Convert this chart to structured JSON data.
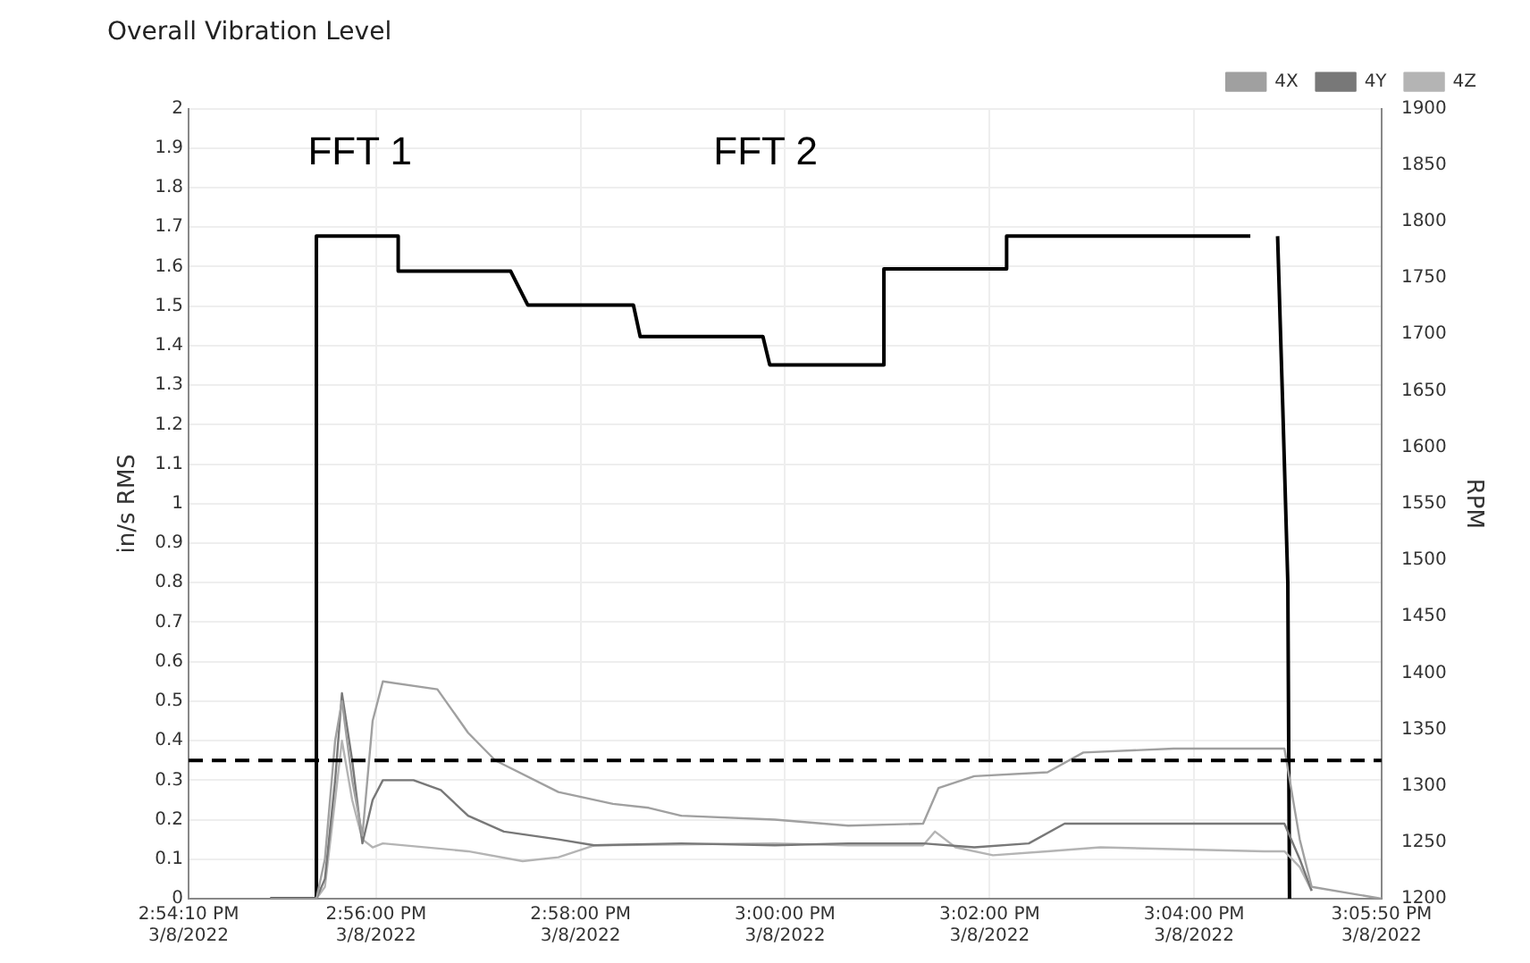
{
  "chart_data": {
    "type": "line",
    "title": "Overall Vibration Level",
    "ylabel": "in/s RMS",
    "y2label": "RPM",
    "xlim": [
      "2022-03-08T14:54:10",
      "2022-03-08T15:05:50"
    ],
    "xticks": [
      {
        "value": "2022-03-08T14:54:10",
        "label": "2:54:10 PM\n3/8/2022"
      },
      {
        "value": "2022-03-08T14:56:00",
        "label": "2:56:00 PM\n3/8/2022"
      },
      {
        "value": "2022-03-08T14:58:00",
        "label": "2:58:00 PM\n3/8/2022"
      },
      {
        "value": "2022-03-08T15:00:00",
        "label": "3:00:00 PM\n3/8/2022"
      },
      {
        "value": "2022-03-08T15:02:00",
        "label": "3:02:00 PM\n3/8/2022"
      },
      {
        "value": "2022-03-08T15:04:00",
        "label": "3:04:00 PM\n3/8/2022"
      },
      {
        "value": "2022-03-08T15:05:50",
        "label": "3:05:50 PM\n3/8/2022"
      }
    ],
    "ylim": [
      0,
      2
    ],
    "yticks": [
      0,
      0.1,
      0.2,
      0.3,
      0.4,
      0.5,
      0.6,
      0.7,
      0.8,
      0.9,
      1,
      1.1,
      1.2,
      1.3,
      1.4,
      1.5,
      1.6,
      1.7,
      1.8,
      1.9,
      2
    ],
    "y2lim": [
      1200,
      1900
    ],
    "y2ticks": [
      1200,
      1250,
      1300,
      1350,
      1400,
      1450,
      1500,
      1550,
      1600,
      1650,
      1700,
      1750,
      1800,
      1850,
      1900
    ],
    "grid": true,
    "legend": "top right",
    "marker": "none",
    "series": [
      {
        "name": "4X",
        "color": "#a0a0a0",
        "x": [
          "2022-03-08T14:54:58",
          "2022-03-08T14:55:25",
          "2022-03-08T14:55:30",
          "2022-03-08T14:55:36",
          "2022-03-08T14:55:40",
          "2022-03-08T14:55:46",
          "2022-03-08T14:55:52",
          "2022-03-08T14:55:58",
          "2022-03-08T14:56:04",
          "2022-03-08T14:56:36",
          "2022-03-08T14:56:54",
          "2022-03-08T14:57:10",
          "2022-03-08T14:57:47",
          "2022-03-08T14:58:19",
          "2022-03-08T14:58:40",
          "2022-03-08T14:58:59",
          "2022-03-08T14:59:54",
          "2022-03-08T15:00:37",
          "2022-03-08T15:01:21",
          "2022-03-08T15:01:30",
          "2022-03-08T15:01:51",
          "2022-03-08T15:02:34",
          "2022-03-08T15:02:55",
          "2022-03-08T15:03:48",
          "2022-03-08T15:04:53",
          "2022-03-08T15:05:02",
          "2022-03-08T15:05:09",
          "2022-03-08T15:05:50"
        ],
        "values": [
          0,
          0,
          0.1,
          0.4,
          0.5,
          0.3,
          0.16,
          0.45,
          0.55,
          0.53,
          0.42,
          0.35,
          0.27,
          0.24,
          0.23,
          0.21,
          0.2,
          0.185,
          0.19,
          0.28,
          0.31,
          0.32,
          0.37,
          0.38,
          0.38,
          0.15,
          0.03,
          0
        ]
      },
      {
        "name": "4Y",
        "color": "#787878",
        "x": [
          "2022-03-08T14:54:58",
          "2022-03-08T14:55:25",
          "2022-03-08T14:55:30",
          "2022-03-08T14:55:36",
          "2022-03-08T14:55:40",
          "2022-03-08T14:55:46",
          "2022-03-08T14:55:52",
          "2022-03-08T14:55:58",
          "2022-03-08T14:56:04",
          "2022-03-08T14:56:22",
          "2022-03-08T14:56:38",
          "2022-03-08T14:56:54",
          "2022-03-08T14:57:15",
          "2022-03-08T14:57:47",
          "2022-03-08T14:58:08",
          "2022-03-08T14:58:59",
          "2022-03-08T14:59:54",
          "2022-03-08T15:00:37",
          "2022-03-08T15:01:21",
          "2022-03-08T15:01:51",
          "2022-03-08T15:02:23",
          "2022-03-08T15:02:44",
          "2022-03-08T15:03:48",
          "2022-03-08T15:04:53",
          "2022-03-08T15:05:02",
          "2022-03-08T15:05:09"
        ],
        "values": [
          0,
          0,
          0.05,
          0.3,
          0.52,
          0.35,
          0.14,
          0.25,
          0.3,
          0.3,
          0.275,
          0.21,
          0.17,
          0.15,
          0.135,
          0.14,
          0.135,
          0.14,
          0.14,
          0.13,
          0.14,
          0.19,
          0.19,
          0.19,
          0.1,
          0.02
        ]
      },
      {
        "name": "4Z",
        "color": "#b4b4b4",
        "x": [
          "2022-03-08T14:54:58",
          "2022-03-08T14:55:25",
          "2022-03-08T14:55:30",
          "2022-03-08T14:55:36",
          "2022-03-08T14:55:40",
          "2022-03-08T14:55:46",
          "2022-03-08T14:55:52",
          "2022-03-08T14:55:58",
          "2022-03-08T14:56:04",
          "2022-03-08T14:56:54",
          "2022-03-08T14:57:26",
          "2022-03-08T14:57:47",
          "2022-03-08T14:58:08",
          "2022-03-08T14:59:54",
          "2022-03-08T15:00:37",
          "2022-03-08T15:01:21",
          "2022-03-08T15:01:28",
          "2022-03-08T15:01:40",
          "2022-03-08T15:02:02",
          "2022-03-08T15:02:34",
          "2022-03-08T15:03:05",
          "2022-03-08T15:04:41",
          "2022-03-08T15:04:53",
          "2022-03-08T15:05:02",
          "2022-03-08T15:05:09"
        ],
        "values": [
          0,
          0,
          0.03,
          0.25,
          0.4,
          0.25,
          0.15,
          0.13,
          0.14,
          0.12,
          0.095,
          0.105,
          0.135,
          0.14,
          0.135,
          0.135,
          0.17,
          0.13,
          0.11,
          0.12,
          0.13,
          0.12,
          0.12,
          0.08,
          0.02
        ]
      },
      {
        "axis": "y2",
        "color": "#000000",
        "x": [
          "2022-03-08T14:54:58",
          "2022-03-08T14:55:25",
          "2022-03-08T14:55:25",
          "2022-03-08T14:56:13",
          "2022-03-08T14:56:13",
          "2022-03-08T14:57:19",
          "2022-03-08T14:57:29",
          "2022-03-08T14:58:31",
          "2022-03-08T14:58:35",
          "2022-03-08T14:59:47",
          "2022-03-08T14:59:51",
          "2022-03-08T15:00:58",
          "2022-03-08T15:00:58",
          "2022-03-08T15:02:10",
          "2022-03-08T15:02:10",
          "2022-03-08T15:04:33",
          "2022-03-08T15:04:41",
          "2022-03-08T15:04:49",
          "2022-03-08T15:04:52",
          "2022-03-08T15:04:55",
          "2022-03-08T15:04:56"
        ],
        "values": [
          1200,
          1200,
          1787,
          1787,
          1756,
          1756,
          1726,
          1726,
          1698,
          1698,
          1673,
          1673,
          1758,
          1758,
          1787,
          1787,
          null,
          1787,
          1637,
          1480,
          1200
        ]
      }
    ],
    "ref_lines": [
      {
        "axis": "y",
        "value": 0.35,
        "color": "#000000",
        "line_style": "dashed"
      }
    ],
    "annotations": [
      "FFT 1",
      "FFT 2"
    ]
  }
}
